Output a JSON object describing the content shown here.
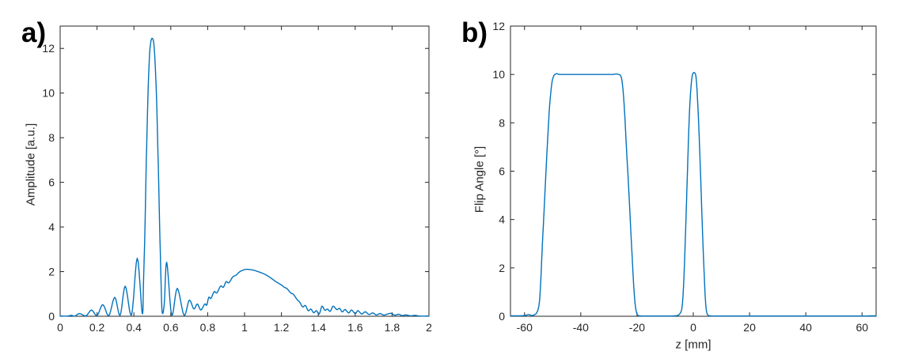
{
  "figure": {
    "background": "#ffffff",
    "line_color": "#0072BD",
    "axis_color": "#262626",
    "tick_label_color": "#262626"
  },
  "chart_data": [
    {
      "type": "line",
      "panel_label": "a)",
      "title": "",
      "xlabel": "",
      "ylabel": "Amplitude [a.u.]",
      "xlim": [
        0,
        2
      ],
      "ylim": [
        0,
        13
      ],
      "grid": false,
      "legend": null,
      "xtick_values": [
        0,
        0.2,
        0.4,
        0.6,
        0.8,
        1,
        1.2,
        1.4,
        1.6,
        1.8,
        2
      ],
      "xtick_labels": [
        "0",
        "0.2",
        "0.4",
        "0.6",
        "0.8",
        "1",
        "1.2",
        "1.4",
        "1.6",
        "1.8",
        "2"
      ],
      "ytick_values": [
        0,
        2,
        4,
        6,
        8,
        10,
        12
      ],
      "ytick_labels": [
        "0",
        "2",
        "4",
        "6",
        "8",
        "10",
        "12"
      ],
      "series": [
        {
          "name": "amplitude-profile",
          "color": "#0072BD",
          "points": [
            [
              0,
              0.01
            ],
            [
              0.04,
              0.01
            ],
            [
              0.06,
              0.04
            ],
            [
              0.08,
              0.01
            ],
            [
              0.105,
              0.12
            ],
            [
              0.14,
              0.02
            ],
            [
              0.17,
              0.28
            ],
            [
              0.2,
              0.03
            ],
            [
              0.231,
              0.52
            ],
            [
              0.264,
              0.03
            ],
            [
              0.296,
              0.85
            ],
            [
              0.325,
              0.04
            ],
            [
              0.353,
              1.35
            ],
            [
              0.387,
              0.05
            ],
            [
              0.418,
              2.6
            ],
            [
              0.445,
              0.12
            ],
            [
              0.452,
              1.5
            ],
            [
              0.46,
              4
            ],
            [
              0.468,
              7.2
            ],
            [
              0.476,
              9.8
            ],
            [
              0.484,
              11.6
            ],
            [
              0.492,
              12.3
            ],
            [
              0.5,
              12.45
            ],
            [
              0.508,
              12.2
            ],
            [
              0.516,
              11.2
            ],
            [
              0.524,
              9.4
            ],
            [
              0.532,
              6.8
            ],
            [
              0.54,
              3.9
            ],
            [
              0.548,
              1.3
            ],
            [
              0.554,
              0.15
            ],
            [
              0.565,
              0.6
            ],
            [
              0.578,
              2.42
            ],
            [
              0.605,
              0.05
            ],
            [
              0.635,
              1.25
            ],
            [
              0.672,
              0.04
            ],
            [
              0.7,
              0.72
            ],
            [
              0.725,
              0.33
            ],
            [
              0.744,
              0.55
            ],
            [
              0.763,
              0.28
            ],
            [
              0.784,
              0.55
            ],
            [
              0.795,
              0.5
            ],
            [
              0.806,
              0.85
            ],
            [
              0.818,
              0.8
            ],
            [
              0.835,
              1.1
            ],
            [
              0.85,
              1.05
            ],
            [
              0.87,
              1.35
            ],
            [
              0.885,
              1.3
            ],
            [
              0.9,
              1.55
            ],
            [
              0.915,
              1.5
            ],
            [
              0.935,
              1.75
            ],
            [
              0.955,
              1.85
            ],
            [
              0.975,
              2
            ],
            [
              1,
              2.09
            ],
            [
              1.02,
              2.1
            ],
            [
              1.05,
              2.06
            ],
            [
              1.08,
              1.98
            ],
            [
              1.11,
              1.88
            ],
            [
              1.14,
              1.73
            ],
            [
              1.17,
              1.55
            ],
            [
              1.2,
              1.4
            ],
            [
              1.215,
              1.3
            ],
            [
              1.23,
              1.24
            ],
            [
              1.25,
              1.05
            ],
            [
              1.265,
              0.98
            ],
            [
              1.285,
              0.75
            ],
            [
              1.3,
              0.62
            ],
            [
              1.315,
              0.42
            ],
            [
              1.33,
              0.48
            ],
            [
              1.345,
              0.25
            ],
            [
              1.36,
              0.32
            ],
            [
              1.375,
              0.16
            ],
            [
              1.39,
              0.25
            ],
            [
              1.405,
              0.1
            ],
            [
              1.42,
              0.45
            ],
            [
              1.435,
              0.27
            ],
            [
              1.45,
              0.32
            ],
            [
              1.465,
              0.22
            ],
            [
              1.48,
              0.45
            ],
            [
              1.5,
              0.3
            ],
            [
              1.515,
              0.35
            ],
            [
              1.53,
              0.2
            ],
            [
              1.545,
              0.3
            ],
            [
              1.565,
              0.15
            ],
            [
              1.58,
              0.28
            ],
            [
              1.6,
              0.12
            ],
            [
              1.615,
              0.25
            ],
            [
              1.635,
              0.1
            ],
            [
              1.655,
              0.2
            ],
            [
              1.675,
              0.08
            ],
            [
              1.695,
              0.15
            ],
            [
              1.715,
              0.06
            ],
            [
              1.735,
              0.12
            ],
            [
              1.755,
              0.05
            ],
            [
              1.775,
              0.1
            ],
            [
              1.795,
              0.13
            ],
            [
              1.815,
              0.05
            ],
            [
              1.835,
              0.09
            ],
            [
              1.855,
              0.03
            ],
            [
              1.875,
              0.06
            ],
            [
              1.9,
              0.02
            ],
            [
              1.925,
              0.04
            ],
            [
              1.95,
              0.01
            ],
            [
              2,
              0.01
            ]
          ]
        }
      ]
    },
    {
      "type": "line",
      "panel_label": "b)",
      "title": "",
      "xlabel": "z [mm]",
      "ylabel": "Flip Angle [°]",
      "xlim": [
        -65,
        65
      ],
      "ylim": [
        0,
        12
      ],
      "grid": false,
      "legend": null,
      "xtick_values": [
        -60,
        -40,
        -20,
        0,
        20,
        40,
        60
      ],
      "xtick_labels": [
        "-60",
        "-40",
        "-20",
        "0",
        "20",
        "40",
        "60"
      ],
      "ytick_values": [
        0,
        2,
        4,
        6,
        8,
        10,
        12
      ],
      "ytick_labels": [
        "0",
        "2",
        "4",
        "6",
        "8",
        "10",
        "12"
      ],
      "series": [
        {
          "name": "flip-angle-profile",
          "color": "#0072BD",
          "points": [
            [
              -65,
              0.02
            ],
            [
              -62,
              0.02
            ],
            [
              -60,
              0.03
            ],
            [
              -58.5,
              0.07
            ],
            [
              -57.5,
              0.03
            ],
            [
              -56.5,
              0.06
            ],
            [
              -55.8,
              0.12
            ],
            [
              -55.2,
              0.28
            ],
            [
              -54.7,
              0.6
            ],
            [
              -54.3,
              1.3
            ],
            [
              -53.9,
              2.3
            ],
            [
              -53.6,
              3.1
            ],
            [
              -53.2,
              4
            ],
            [
              -52.7,
              5.2
            ],
            [
              -52.2,
              6.4
            ],
            [
              -51.7,
              7.5
            ],
            [
              -51.2,
              8.5
            ],
            [
              -50.7,
              9.2
            ],
            [
              -50.2,
              9.7
            ],
            [
              -49.7,
              9.92
            ],
            [
              -49.2,
              10
            ],
            [
              -48.5,
              10.03
            ],
            [
              -47.5,
              10
            ],
            [
              -46,
              10
            ],
            [
              -44,
              10
            ],
            [
              -42,
              10
            ],
            [
              -40,
              10
            ],
            [
              -38,
              10
            ],
            [
              -36,
              10
            ],
            [
              -34,
              10
            ],
            [
              -32,
              10
            ],
            [
              -30,
              10
            ],
            [
              -28.5,
              10
            ],
            [
              -27.5,
              10.02
            ],
            [
              -26.5,
              10
            ],
            [
              -26,
              9.97
            ],
            [
              -25.6,
              9.88
            ],
            [
              -25.2,
              9.6
            ],
            [
              -24.8,
              9.1
            ],
            [
              -24.4,
              8.4
            ],
            [
              -24,
              7.5
            ],
            [
              -23.6,
              6.6
            ],
            [
              -23.2,
              5.8
            ],
            [
              -22.7,
              4.7
            ],
            [
              -22.2,
              3.5
            ],
            [
              -21.7,
              2.4
            ],
            [
              -21.3,
              1.5
            ],
            [
              -20.9,
              0.8
            ],
            [
              -20.5,
              0.35
            ],
            [
              -20.1,
              0.12
            ],
            [
              -19.7,
              0.04
            ],
            [
              -19.2,
              0.02
            ],
            [
              -18,
              0.01
            ],
            [
              -16,
              0.01
            ],
            [
              -14,
              0.01
            ],
            [
              -12,
              0.01
            ],
            [
              -10,
              0.01
            ],
            [
              -8,
              0.01
            ],
            [
              -6.5,
              0.02
            ],
            [
              -5.5,
              0.04
            ],
            [
              -4.8,
              0.1
            ],
            [
              -4.2,
              0.25
            ],
            [
              -3.8,
              0.6
            ],
            [
              -3.4,
              1.4
            ],
            [
              -3,
              2.6
            ],
            [
              -2.6,
              4
            ],
            [
              -2.2,
              5.5
            ],
            [
              -1.8,
              7
            ],
            [
              -1.4,
              8.3
            ],
            [
              -1.1,
              9
            ],
            [
              -0.8,
              9.5
            ],
            [
              -0.5,
              9.85
            ],
            [
              -0.2,
              10.02
            ],
            [
              0.2,
              10.08
            ],
            [
              0.6,
              10.05
            ],
            [
              0.9,
              9.95
            ],
            [
              1.2,
              9.6
            ],
            [
              1.5,
              9
            ],
            [
              1.9,
              8
            ],
            [
              2.3,
              6.8
            ],
            [
              2.7,
              5.5
            ],
            [
              3.1,
              4.1
            ],
            [
              3.5,
              2.8
            ],
            [
              3.9,
              1.7
            ],
            [
              4.2,
              0.9
            ],
            [
              4.5,
              0.4
            ],
            [
              4.8,
              0.15
            ],
            [
              5.2,
              0.05
            ],
            [
              5.8,
              0.02
            ],
            [
              7,
              0.01
            ],
            [
              10,
              0.01
            ],
            [
              15,
              0.01
            ],
            [
              20,
              0.01
            ],
            [
              30,
              0.01
            ],
            [
              40,
              0.01
            ],
            [
              50,
              0.01
            ],
            [
              60,
              0.01
            ],
            [
              65,
              0.02
            ]
          ]
        }
      ]
    }
  ]
}
